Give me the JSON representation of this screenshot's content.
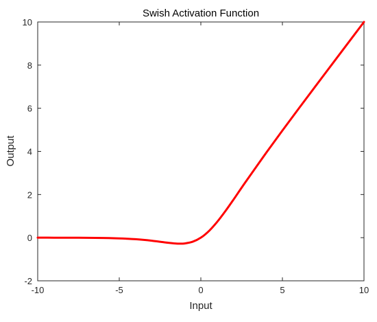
{
  "chart_data": {
    "type": "line",
    "title": "Swish Activation Function",
    "xlabel": "Input",
    "ylabel": "Output",
    "xlim": [
      -10,
      10
    ],
    "ylim": [
      -2,
      10
    ],
    "xticks": [
      -10,
      -5,
      0,
      5,
      10
    ],
    "yticks": [
      -2,
      0,
      2,
      4,
      6,
      8,
      10
    ],
    "xtick_labels": [
      "-10",
      "-5",
      "0",
      "5",
      "10"
    ],
    "ytick_labels": [
      "-2",
      "0",
      "2",
      "4",
      "6",
      "8",
      "10"
    ],
    "grid": false,
    "series": [
      {
        "color": "#ff0000",
        "x": [
          -10,
          -9,
          -8,
          -7,
          -6,
          -5,
          -4.5,
          -4,
          -3.5,
          -3,
          -2.5,
          -2,
          -1.5,
          -1.28,
          -1,
          -0.5,
          0,
          0.5,
          1,
          1.5,
          2,
          2.5,
          3,
          4,
          5,
          6,
          7,
          8,
          9,
          10
        ],
        "y": [
          0,
          -0.001,
          -0.003,
          -0.006,
          -0.015,
          -0.033,
          -0.05,
          -0.072,
          -0.102,
          -0.142,
          -0.189,
          -0.238,
          -0.274,
          -0.278,
          -0.269,
          -0.189,
          0,
          0.311,
          0.731,
          1.226,
          1.762,
          2.318,
          2.858,
          3.928,
          4.967,
          5.985,
          6.994,
          7.997,
          8.999,
          10
        ]
      }
    ]
  }
}
